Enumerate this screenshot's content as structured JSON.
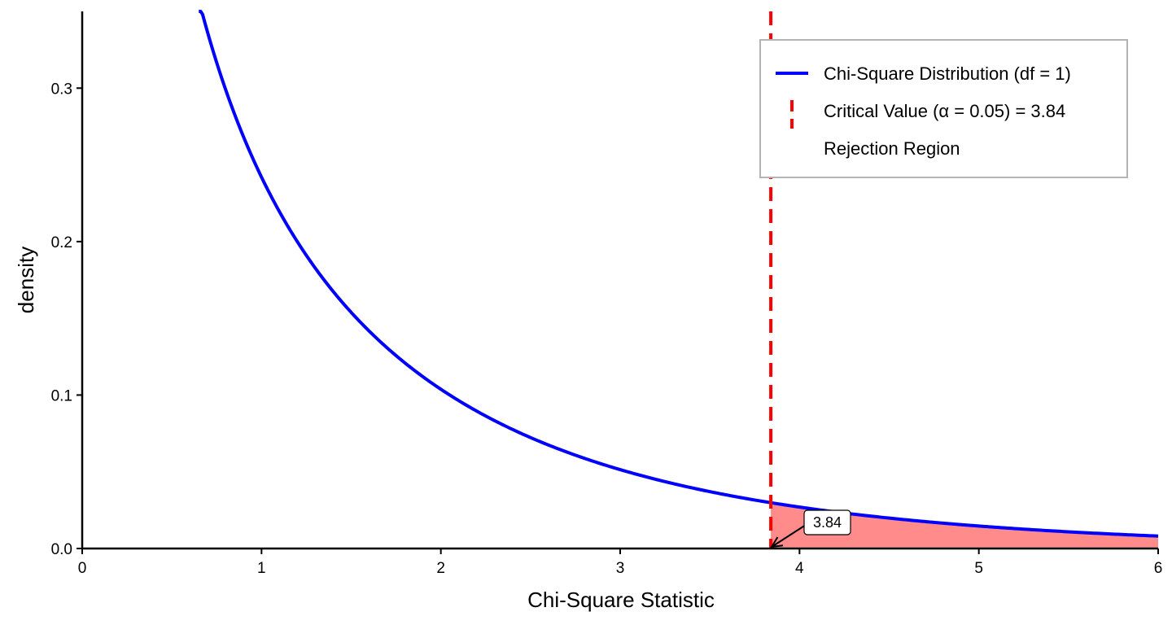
{
  "chart_data": {
    "type": "line",
    "title": "",
    "xlabel": "Chi-Square Statistic",
    "ylabel": "density",
    "xlim": [
      0,
      6
    ],
    "ylim": [
      0,
      0.35
    ],
    "x_ticks": [
      "0",
      "1",
      "2",
      "3",
      "4",
      "5",
      "6"
    ],
    "y_ticks": [
      "0.0",
      "0.1",
      "0.2",
      "0.3"
    ],
    "grid": false,
    "legend_position": "top-right",
    "series": [
      {
        "name": "Chi-Square Distribution (df = 1)",
        "color": "#0000ff",
        "df": 1,
        "x": [
          0.65,
          0.7,
          0.8,
          0.9,
          1.0,
          1.25,
          1.5,
          1.75,
          2.0,
          2.5,
          3.0,
          3.5,
          3.84,
          4.0,
          4.5,
          5.0,
          5.5,
          6.0
        ],
        "y": [
          0.355,
          0.337,
          0.301,
          0.271,
          0.242,
          0.189,
          0.154,
          0.126,
          0.104,
          0.072,
          0.051,
          0.037,
          0.0298,
          0.027,
          0.02,
          0.015,
          0.011,
          0.0081
        ]
      }
    ],
    "critical_value": {
      "label": "Critical Value (α = 0.05) = 3.84",
      "x": 3.84,
      "color": "#ff0000"
    },
    "rejection_region": {
      "label": "Rejection Region",
      "from": 3.84,
      "to": 6,
      "color": "#ff8b8b"
    },
    "annotation": {
      "text": "3.84",
      "x": 3.84,
      "y": 0
    }
  }
}
